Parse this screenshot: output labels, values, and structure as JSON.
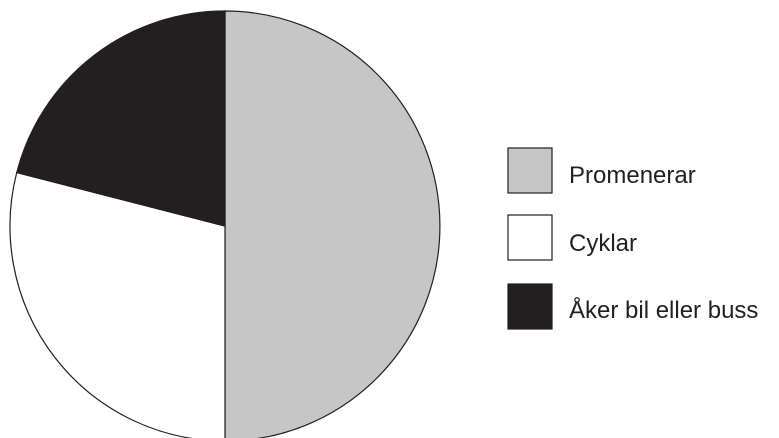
{
  "chart_data": {
    "type": "pie",
    "title": "",
    "start_angle_deg": 0,
    "direction": "clockwise",
    "slices": [
      {
        "label": "Promenerar",
        "value": 50,
        "color": "#c6c6c6"
      },
      {
        "label": "Cyklar",
        "value": 29,
        "color": "#ffffff"
      },
      {
        "label": "Åker bil eller buss",
        "value": 21,
        "color": "#231f20"
      }
    ],
    "legend": {
      "position": "right"
    }
  },
  "colors": {
    "outline": "#231f20",
    "background": "#ffffff"
  }
}
